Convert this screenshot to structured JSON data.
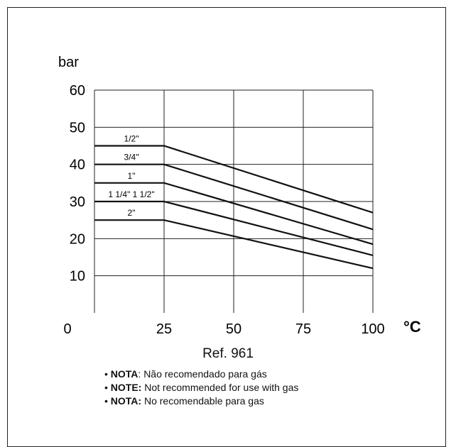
{
  "chart_data": {
    "type": "line",
    "ylabel": "bar",
    "xunit": "°C",
    "xticks": [
      0,
      25,
      50,
      75,
      100
    ],
    "yticks": [
      10,
      20,
      30,
      40,
      50,
      60
    ],
    "xlim": [
      0,
      100
    ],
    "ylim": [
      0,
      60
    ],
    "grid": true,
    "series": [
      {
        "name": "1/2\"",
        "points": [
          [
            0,
            45
          ],
          [
            25,
            45
          ],
          [
            100,
            27
          ]
        ]
      },
      {
        "name": "3/4\"",
        "points": [
          [
            0,
            40
          ],
          [
            25,
            40
          ],
          [
            100,
            22.5
          ]
        ]
      },
      {
        "name": "1\"",
        "points": [
          [
            0,
            35
          ],
          [
            25,
            35
          ],
          [
            100,
            18.5
          ]
        ]
      },
      {
        "name": "1 1/4\" 1 1/2\"",
        "points": [
          [
            0,
            30
          ],
          [
            25,
            30
          ],
          [
            100,
            15.5
          ]
        ]
      },
      {
        "name": "2\"",
        "points": [
          [
            0,
            25
          ],
          [
            25,
            25
          ],
          [
            100,
            12
          ]
        ]
      }
    ]
  },
  "ref": "Ref. 961",
  "notes": [
    {
      "label": "NOTA",
      "text": ": Não recomendado para gás"
    },
    {
      "label": "NOTE:",
      "text": " Not recommended for use with gas"
    },
    {
      "label": "NOTA:",
      "text": " No recomendable para gas"
    }
  ]
}
